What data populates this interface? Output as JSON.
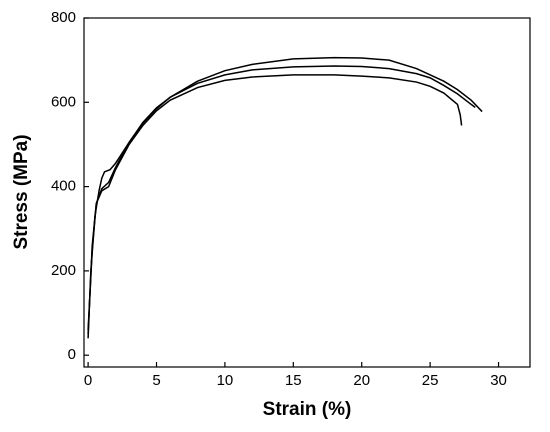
{
  "chart_data": {
    "type": "line",
    "x_label": "Strain (%)",
    "y_label": "Stress (MPa)",
    "xlim": [
      -0.3,
      32.3
    ],
    "ylim": [
      -28,
      800
    ],
    "xticks": [
      0,
      5,
      10,
      15,
      20,
      25,
      30
    ],
    "yticks": [
      0,
      200,
      400,
      600,
      800
    ],
    "grid": false,
    "series": [
      {
        "color": "#000000",
        "x": [
          0,
          0.2,
          0.5,
          0.8,
          1.0,
          1.2,
          1.6,
          2,
          3,
          4,
          5,
          6,
          8,
          10,
          12,
          15,
          18,
          20,
          22,
          24,
          26,
          27,
          28,
          28.8
        ],
        "values": [
          40,
          200,
          330,
          390,
          420,
          435,
          440,
          455,
          505,
          550,
          585,
          612,
          650,
          675,
          690,
          703,
          706,
          705,
          700,
          680,
          650,
          630,
          605,
          578
        ]
      },
      {
        "color": "#000000",
        "x": [
          0,
          0.3,
          0.6,
          1,
          1.5,
          2,
          3,
          4,
          5,
          6,
          8,
          10,
          12,
          15,
          18,
          20,
          22,
          24,
          25,
          26,
          27,
          28,
          28.3
        ],
        "values": [
          60,
          250,
          360,
          395,
          410,
          445,
          505,
          552,
          587,
          612,
          645,
          665,
          677,
          684,
          686,
          685,
          680,
          668,
          658,
          640,
          620,
          595,
          588
        ]
      },
      {
        "color": "#000000",
        "x": [
          0,
          0.3,
          0.6,
          1,
          1.5,
          2,
          3,
          4,
          5,
          6,
          8,
          10,
          12,
          15,
          18,
          20,
          22,
          24,
          25,
          26,
          27,
          27.2,
          27.3
        ],
        "values": [
          50,
          260,
          360,
          390,
          400,
          440,
          500,
          545,
          580,
          605,
          635,
          652,
          660,
          665,
          665,
          662,
          658,
          648,
          638,
          622,
          595,
          570,
          545
        ]
      }
    ]
  }
}
